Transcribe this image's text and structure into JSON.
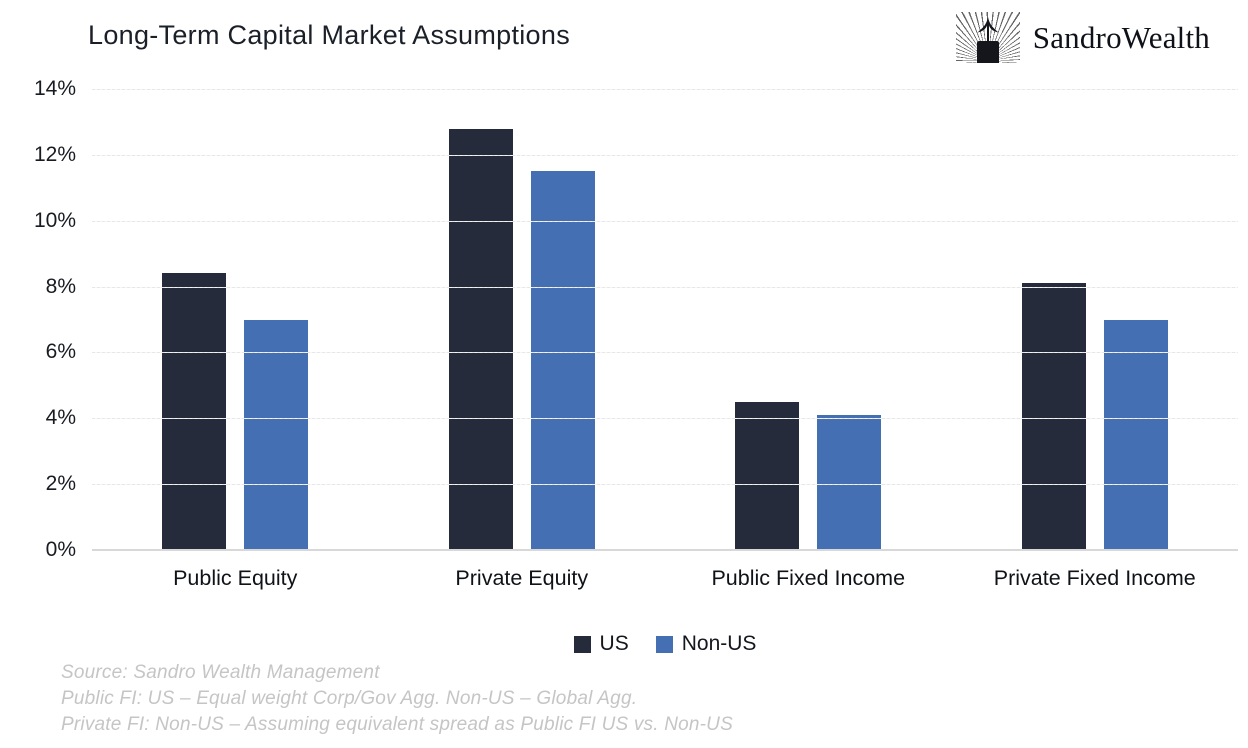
{
  "header": {
    "title": "Long-Term Capital Market Assumptions",
    "brand": "SandroWealth"
  },
  "chart_data": {
    "type": "bar",
    "title": "Long-Term Capital Market Assumptions",
    "categories": [
      "Public Equity",
      "Private Equity",
      "Public Fixed Income",
      "Private Fixed Income"
    ],
    "series": [
      {
        "name": "US",
        "color": "#252B3A",
        "values": [
          8.4,
          12.8,
          4.5,
          8.1
        ]
      },
      {
        "name": "Non-US",
        "color": "#4470B3",
        "values": [
          7.0,
          11.5,
          4.1,
          7.0
        ]
      }
    ],
    "xlabel": "",
    "ylabel": "",
    "ylim": [
      0,
      14
    ],
    "ytick_step": 2,
    "ytick_suffix": "%",
    "grid": "horizontal-dashed",
    "legend_position": "bottom"
  },
  "footnotes": {
    "lines": [
      "Source: Sandro Wealth Management",
      "Public FI: US – Equal weight Corp/Gov Agg. Non-US – Global Agg.",
      "Private FI: Non-US – Assuming equivalent spread as Public FI US vs. Non-US"
    ]
  }
}
